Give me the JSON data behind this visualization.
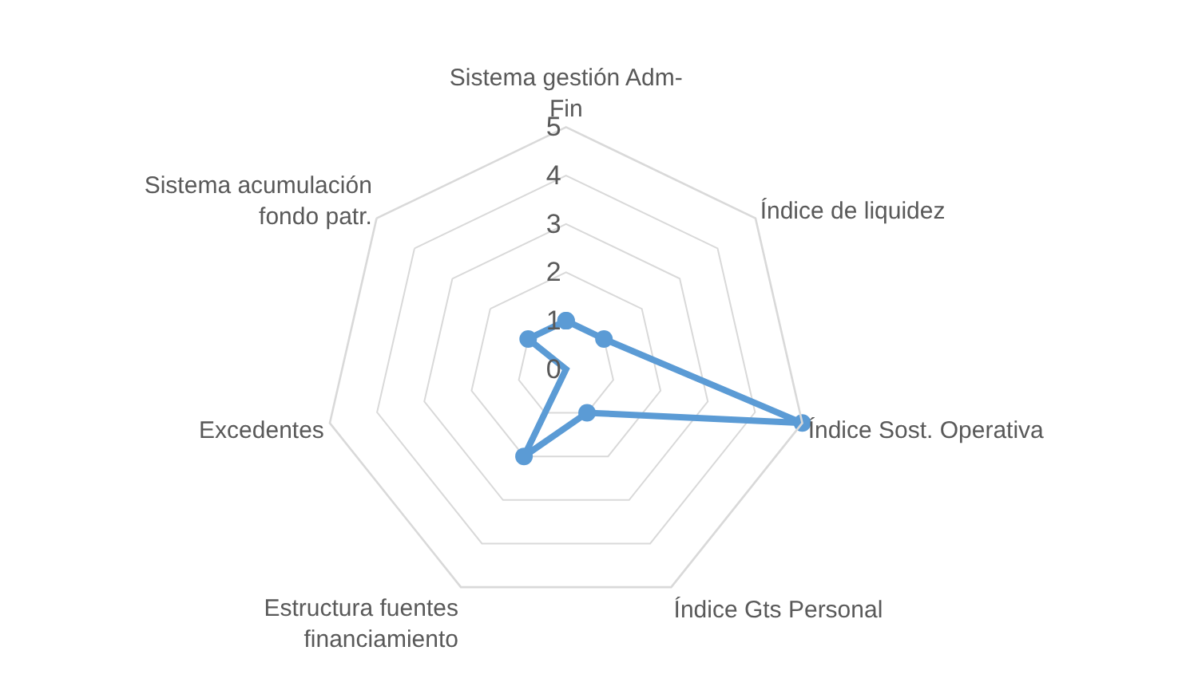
{
  "chart_data": {
    "type": "radar",
    "categories": [
      "Sistema gestión Adm-Fin",
      "Índice de liquidez",
      "Índice Sost. Operativa",
      "Índice Gts Personal",
      "Estructura fuentes financiamiento",
      "Excedentes",
      "Sistema acumulación fondo patr."
    ],
    "series": [
      {
        "color": "#5b9bd5",
        "values": [
          1,
          1,
          5,
          1,
          2,
          0,
          1
        ]
      }
    ],
    "ylim": [
      0,
      5
    ],
    "yticks": [
      0,
      1,
      2,
      3,
      4,
      5
    ],
    "grid": true,
    "marker": "circle",
    "line_style": "solid"
  }
}
